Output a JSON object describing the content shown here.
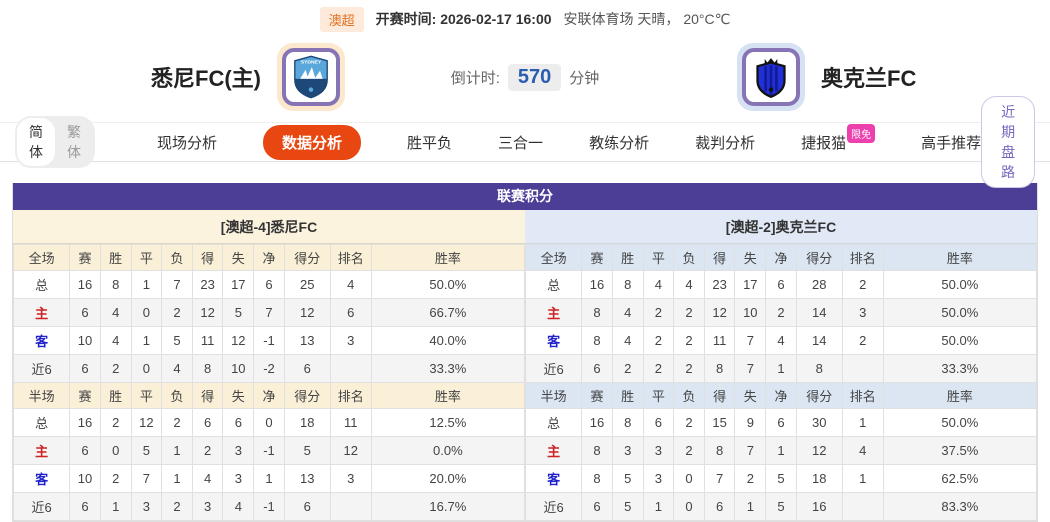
{
  "colors": {
    "header_purple": "#4c3e97",
    "active_tab_orange": "#e84712",
    "badge_pink": "#ee3fae",
    "home_label_red": "#cc2222",
    "away_label_blue": "#2222cc",
    "countdown_blue": "#2a5db0",
    "league_badge_orange": "#e2701f",
    "home_logo_frame": "#fbe8cd",
    "away_logo_frame": "#d6e1f3"
  },
  "top_bar": {
    "league_badge": "澳超",
    "kickoff": "开赛时间: 2026-02-17 16:00",
    "venue_weather": "安联体育场 天晴， 20°C℃"
  },
  "match_header": {
    "home_team": "悉尼FC(主)",
    "away_team": "奥克兰FC",
    "home_logo": "sydney-fc-crest",
    "away_logo": "auckland-fc-crest",
    "countdown_label": "倒计时:",
    "countdown_value": "570",
    "countdown_unit": "分钟"
  },
  "nav": {
    "lang_options": [
      {
        "label": "简体",
        "active": true
      },
      {
        "label": "繁体",
        "active": false
      }
    ],
    "tabs": [
      {
        "label": "现场分析",
        "active": false
      },
      {
        "label": "数据分析",
        "active": true
      },
      {
        "label": "胜平负",
        "active": false
      },
      {
        "label": "三合一",
        "active": false
      },
      {
        "label": "教练分析",
        "active": false
      },
      {
        "label": "裁判分析",
        "active": false
      },
      {
        "label": "捷报猫",
        "active": false,
        "badge": "限免"
      },
      {
        "label": "高手推荐",
        "active": false
      }
    ],
    "right_button": "近期盘路"
  },
  "league_table": {
    "title": "联赛积分",
    "sides": [
      {
        "team_title": "[澳超-4]悉尼FC",
        "theme": "cream",
        "sections": [
          {
            "header": [
              "全场",
              "赛",
              "胜",
              "平",
              "负",
              "得",
              "失",
              "净",
              "得分",
              "排名",
              "胜率"
            ],
            "rows": [
              {
                "label": "总",
                "label_color": "default",
                "cells": [
                  "16",
                  "8",
                  "1",
                  "7",
                  "23",
                  "17",
                  "6",
                  "25",
                  "4",
                  "50.0%"
                ]
              },
              {
                "label": "主",
                "label_color": "red",
                "cells": [
                  "6",
                  "4",
                  "0",
                  "2",
                  "12",
                  "5",
                  "7",
                  "12",
                  "6",
                  "66.7%"
                ]
              },
              {
                "label": "客",
                "label_color": "blue",
                "cells": [
                  "10",
                  "4",
                  "1",
                  "5",
                  "11",
                  "12",
                  "-1",
                  "13",
                  "3",
                  "40.0%"
                ]
              },
              {
                "label": "近6",
                "label_color": "default",
                "cells": [
                  "6",
                  "2",
                  "0",
                  "4",
                  "8",
                  "10",
                  "-2",
                  "6",
                  "",
                  "33.3%"
                ]
              }
            ]
          },
          {
            "header": [
              "半场",
              "赛",
              "胜",
              "平",
              "负",
              "得",
              "失",
              "净",
              "得分",
              "排名",
              "胜率"
            ],
            "rows": [
              {
                "label": "总",
                "label_color": "default",
                "cells": [
                  "16",
                  "2",
                  "12",
                  "2",
                  "6",
                  "6",
                  "0",
                  "18",
                  "11",
                  "12.5%"
                ]
              },
              {
                "label": "主",
                "label_color": "red",
                "cells": [
                  "6",
                  "0",
                  "5",
                  "1",
                  "2",
                  "3",
                  "-1",
                  "5",
                  "12",
                  "0.0%"
                ]
              },
              {
                "label": "客",
                "label_color": "blue",
                "cells": [
                  "10",
                  "2",
                  "7",
                  "1",
                  "4",
                  "3",
                  "1",
                  "13",
                  "3",
                  "20.0%"
                ]
              },
              {
                "label": "近6",
                "label_color": "default",
                "cells": [
                  "6",
                  "1",
                  "3",
                  "2",
                  "3",
                  "4",
                  "-1",
                  "6",
                  "",
                  "16.7%"
                ]
              }
            ]
          }
        ]
      },
      {
        "team_title": "[澳超-2]奥克兰FC",
        "theme": "blue",
        "sections": [
          {
            "header": [
              "全场",
              "赛",
              "胜",
              "平",
              "负",
              "得",
              "失",
              "净",
              "得分",
              "排名",
              "胜率"
            ],
            "rows": [
              {
                "label": "总",
                "label_color": "default",
                "cells": [
                  "16",
                  "8",
                  "4",
                  "4",
                  "23",
                  "17",
                  "6",
                  "28",
                  "2",
                  "50.0%"
                ]
              },
              {
                "label": "主",
                "label_color": "red",
                "cells": [
                  "8",
                  "4",
                  "2",
                  "2",
                  "12",
                  "10",
                  "2",
                  "14",
                  "3",
                  "50.0%"
                ]
              },
              {
                "label": "客",
                "label_color": "blue",
                "cells": [
                  "8",
                  "4",
                  "2",
                  "2",
                  "11",
                  "7",
                  "4",
                  "14",
                  "2",
                  "50.0%"
                ]
              },
              {
                "label": "近6",
                "label_color": "default",
                "cells": [
                  "6",
                  "2",
                  "2",
                  "2",
                  "8",
                  "7",
                  "1",
                  "8",
                  "",
                  "33.3%"
                ]
              }
            ]
          },
          {
            "header": [
              "半场",
              "赛",
              "胜",
              "平",
              "负",
              "得",
              "失",
              "净",
              "得分",
              "排名",
              "胜率"
            ],
            "rows": [
              {
                "label": "总",
                "label_color": "default",
                "cells": [
                  "16",
                  "8",
                  "6",
                  "2",
                  "15",
                  "9",
                  "6",
                  "30",
                  "1",
                  "50.0%"
                ]
              },
              {
                "label": "主",
                "label_color": "red",
                "cells": [
                  "8",
                  "3",
                  "3",
                  "2",
                  "8",
                  "7",
                  "1",
                  "12",
                  "4",
                  "37.5%"
                ]
              },
              {
                "label": "客",
                "label_color": "blue",
                "cells": [
                  "8",
                  "5",
                  "3",
                  "0",
                  "7",
                  "2",
                  "5",
                  "18",
                  "1",
                  "62.5%"
                ]
              },
              {
                "label": "近6",
                "label_color": "default",
                "cells": [
                  "6",
                  "5",
                  "1",
                  "0",
                  "6",
                  "1",
                  "5",
                  "16",
                  "",
                  "83.3%"
                ]
              }
            ]
          }
        ]
      }
    ]
  }
}
